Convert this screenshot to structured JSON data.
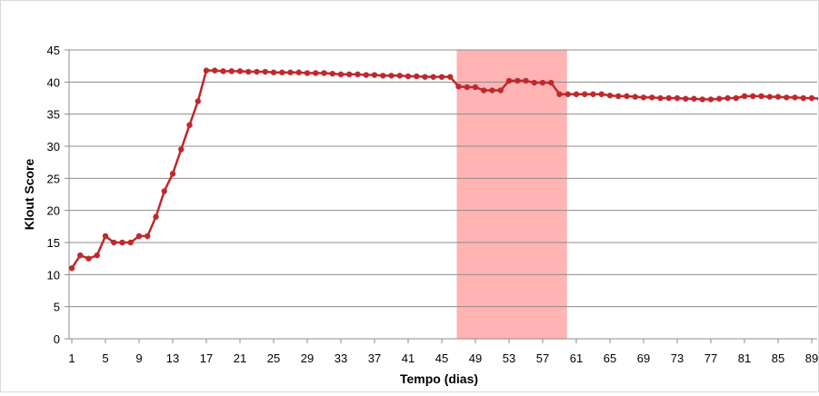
{
  "chart_data": {
    "type": "line",
    "xlabel": "Tempo (dias)",
    "ylabel": "Klout Score",
    "xlim": [
      1,
      90
    ],
    "ylim": [
      0,
      45
    ],
    "x_ticks": [
      1,
      5,
      9,
      13,
      17,
      21,
      25,
      29,
      33,
      37,
      41,
      45,
      49,
      53,
      57,
      61,
      65,
      69,
      73,
      77,
      81,
      85,
      89
    ],
    "y_ticks": [
      0,
      5,
      10,
      15,
      20,
      25,
      30,
      35,
      40,
      45
    ],
    "grid": "horizontal",
    "highlight_band": {
      "x_start": 47,
      "x_end": 60,
      "color": "#ffb3b3"
    },
    "series": [
      {
        "color": "#c0282d",
        "x": [
          1,
          2,
          3,
          4,
          5,
          6,
          7,
          8,
          9,
          10,
          11,
          12,
          13,
          14,
          15,
          16,
          17,
          18,
          19,
          20,
          21,
          22,
          23,
          24,
          25,
          26,
          27,
          28,
          29,
          30,
          31,
          32,
          33,
          34,
          35,
          36,
          37,
          38,
          39,
          40,
          41,
          42,
          43,
          44,
          45,
          46,
          47,
          48,
          49,
          50,
          51,
          52,
          53,
          54,
          55,
          56,
          57,
          58,
          59,
          60,
          61,
          62,
          63,
          64,
          65,
          66,
          67,
          68,
          69,
          70,
          71,
          72,
          73,
          74,
          75,
          76,
          77,
          78,
          79,
          80,
          81,
          82,
          83,
          84,
          85,
          86,
          87,
          88,
          89,
          90
        ],
        "values": [
          11,
          13,
          12.5,
          13,
          16,
          15,
          15,
          15,
          16,
          16,
          19,
          23,
          25.7,
          29.5,
          33.3,
          37,
          41.8,
          41.8,
          41.7,
          41.7,
          41.7,
          41.6,
          41.6,
          41.6,
          41.5,
          41.5,
          41.5,
          41.5,
          41.4,
          41.4,
          41.4,
          41.3,
          41.2,
          41.2,
          41.2,
          41.1,
          41.1,
          41,
          41,
          41,
          40.9,
          40.9,
          40.8,
          40.8,
          40.8,
          40.8,
          39.3,
          39.2,
          39.2,
          38.7,
          38.7,
          38.7,
          40.2,
          40.2,
          40.2,
          39.9,
          39.9,
          39.9,
          38.1,
          38.1,
          38.1,
          38.1,
          38.1,
          38.1,
          37.9,
          37.8,
          37.8,
          37.7,
          37.6,
          37.6,
          37.5,
          37.5,
          37.5,
          37.4,
          37.4,
          37.3,
          37.3,
          37.4,
          37.5,
          37.5,
          37.8,
          37.8,
          37.8,
          37.7,
          37.7,
          37.6,
          37.6,
          37.5,
          37.5,
          37.4
        ]
      }
    ]
  }
}
